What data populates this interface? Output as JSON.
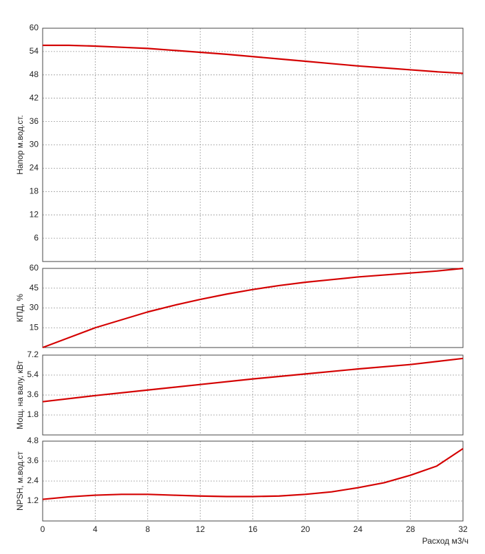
{
  "chart_data": [
    {
      "type": "line",
      "ylabel": "Напор м.вод.ст.",
      "color": "#d40000",
      "grid": true,
      "x": [
        0,
        2,
        4,
        6,
        8,
        10,
        12,
        14,
        16,
        18,
        20,
        22,
        24,
        26,
        28,
        30,
        32
      ],
      "values": [
        55.6,
        55.6,
        55.4,
        55.1,
        54.8,
        54.3,
        53.8,
        53.3,
        52.7,
        52.1,
        51.5,
        50.9,
        50.3,
        49.8,
        49.3,
        48.8,
        48.4
      ],
      "xlim": [
        0,
        32
      ],
      "xticks": [
        0,
        4,
        8,
        12,
        16,
        20,
        24,
        28,
        32
      ],
      "ylim": [
        0,
        60
      ],
      "yticks": [
        6,
        12,
        18,
        24,
        30,
        36,
        42,
        48,
        54,
        60
      ]
    },
    {
      "type": "line",
      "ylabel": "КПД, %",
      "color": "#d40000",
      "grid": true,
      "x": [
        0,
        2,
        4,
        6,
        8,
        10,
        12,
        14,
        16,
        18,
        20,
        22,
        24,
        26,
        28,
        30,
        32
      ],
      "values": [
        0,
        7.5,
        15,
        21,
        27,
        32,
        36.5,
        40.5,
        44,
        47,
        49.5,
        51.5,
        53.5,
        55,
        56.5,
        58,
        60
      ],
      "xlim": [
        0,
        32
      ],
      "xticks": [
        0,
        4,
        8,
        12,
        16,
        20,
        24,
        28,
        32
      ],
      "ylim": [
        0,
        60
      ],
      "yticks": [
        15,
        30,
        45,
        60
      ]
    },
    {
      "type": "line",
      "ylabel": "Мощ. на валу, кВт",
      "color": "#d40000",
      "grid": true,
      "x": [
        0,
        4,
        8,
        12,
        16,
        20,
        24,
        28,
        32
      ],
      "values": [
        3.0,
        3.55,
        4.05,
        4.55,
        5.05,
        5.5,
        5.95,
        6.35,
        6.9
      ],
      "xlim": [
        0,
        32
      ],
      "xticks": [
        0,
        4,
        8,
        12,
        16,
        20,
        24,
        28,
        32
      ],
      "ylim": [
        0,
        7.2
      ],
      "yticks": [
        1.8,
        3.6,
        5.4,
        7.2
      ]
    },
    {
      "type": "line",
      "ylabel": "NPSH, м.вод.ст",
      "xlabel": "Расход м3/ч",
      "color": "#d40000",
      "grid": true,
      "x": [
        0,
        2,
        4,
        6,
        8,
        10,
        12,
        14,
        16,
        18,
        20,
        22,
        24,
        26,
        28,
        30,
        32
      ],
      "values": [
        1.3,
        1.45,
        1.55,
        1.6,
        1.6,
        1.55,
        1.5,
        1.47,
        1.47,
        1.5,
        1.6,
        1.75,
        2.0,
        2.3,
        2.75,
        3.3,
        4.35
      ],
      "xlim": [
        0,
        32
      ],
      "xticks": [
        0,
        4,
        8,
        12,
        16,
        20,
        24,
        28,
        32
      ],
      "ylim": [
        0,
        4.8
      ],
      "yticks": [
        1.2,
        2.4,
        3.6,
        4.8
      ]
    }
  ]
}
